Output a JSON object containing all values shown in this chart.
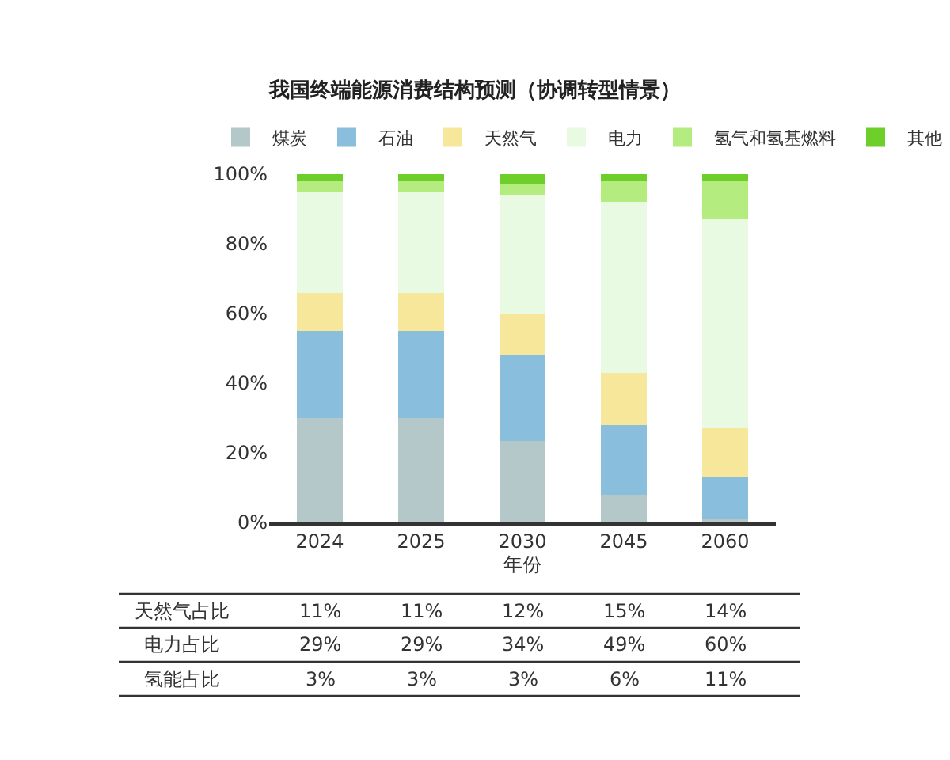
{
  "chart_data": {
    "type": "bar",
    "stacked": true,
    "title": "我国终端能源消费结构预测（协调转型情景）",
    "xlabel": "年份",
    "categories": [
      "2024",
      "2025",
      "2030",
      "2045",
      "2060"
    ],
    "series": [
      {
        "name": "煤炭",
        "color": "#b5c8c9",
        "values": [
          30,
          30,
          23.5,
          8,
          1
        ]
      },
      {
        "name": "石油",
        "color": "#89bedd",
        "values": [
          25,
          25,
          24.5,
          20,
          12
        ]
      },
      {
        "name": "天然气",
        "color": "#f7e79b",
        "values": [
          11,
          11,
          12,
          15,
          14
        ],
        "value_labels": [
          "11%",
          "11%",
          "12%",
          "15%",
          "14%"
        ]
      },
      {
        "name": "电力",
        "color": "#e8fbe2",
        "values": [
          29,
          29,
          34,
          49,
          60
        ],
        "value_labels": [
          "29%",
          "29%",
          "34%",
          "49%",
          "60%"
        ]
      },
      {
        "name": "氢气和氢基燃料",
        "color": "#b5ec7f",
        "values": [
          3,
          3,
          3,
          6,
          11
        ],
        "value_labels": [
          "3%",
          "3%",
          "3%",
          "6%",
          "11%"
        ]
      },
      {
        "name": "其他",
        "color": "#6fcf2a",
        "values": [
          2,
          2,
          3,
          2,
          2
        ]
      }
    ],
    "annotations": [
      "天然气占比",
      "电力占比",
      "氢能占比"
    ],
    "ylim": [
      0,
      100
    ],
    "yticks": [
      {
        "value": 0,
        "label": "0%"
      },
      {
        "value": 20,
        "label": "20%"
      },
      {
        "value": 40,
        "label": "40%"
      },
      {
        "value": 60,
        "label": "60%"
      },
      {
        "value": 80,
        "label": "80%"
      },
      {
        "value": 100,
        "label": "100%"
      }
    ],
    "legend": "top"
  }
}
